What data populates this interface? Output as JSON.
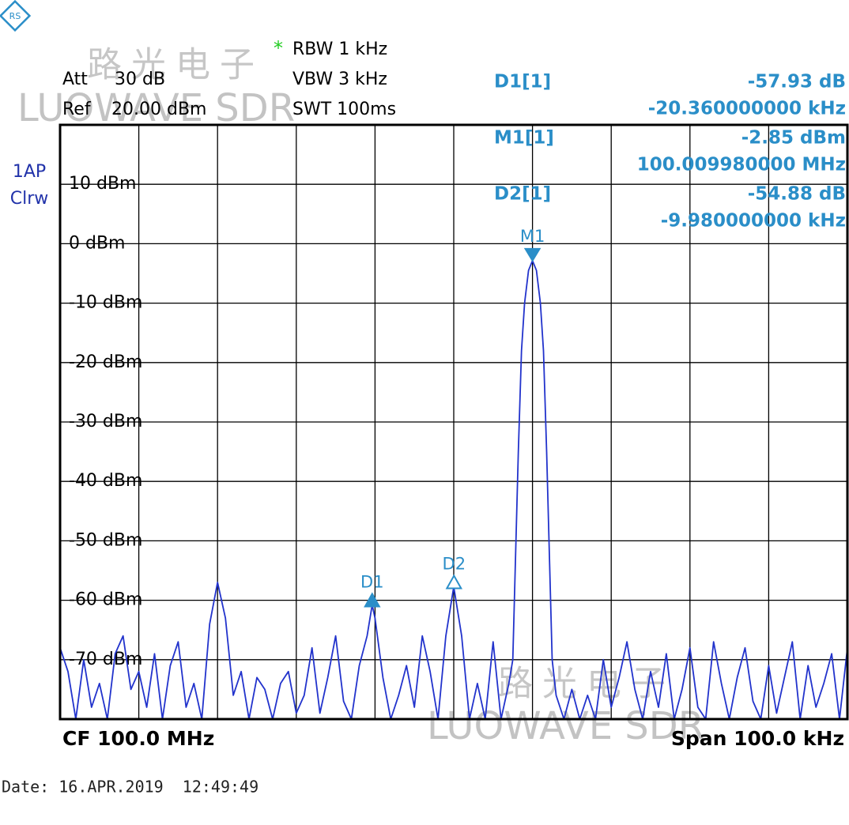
{
  "chart_data": {
    "type": "line",
    "settings": {
      "att_label": "Att",
      "att": "30 dB",
      "ref_label": "Ref",
      "ref": "20.00 dBm",
      "rbw_star": "*",
      "rbw": "RBW 1 kHz",
      "vbw": "VBW 3 kHz",
      "swt": "SWT 100ms",
      "trace_mode": [
        "1AP",
        "Clrw"
      ]
    },
    "readouts": [
      {
        "name": "D1[1]",
        "value": "-57.93 dB",
        "position": "-20.360000000 kHz"
      },
      {
        "name": "M1[1]",
        "value": "-2.85 dBm",
        "position": "100.009980000 MHz"
      },
      {
        "name": "D2[1]",
        "value": "-54.88 dB",
        "position": "-9.980000000 kHz"
      }
    ],
    "footer": {
      "cf": "CF 100.0 MHz",
      "span": "Span 100.0 kHz"
    },
    "date": "Date: 16.APR.2019  12:49:49",
    "watermark": [
      {
        "cn": "路光电子",
        "en": "LUOWAVE SDR"
      },
      {
        "cn": "路光电子",
        "en": "LUOWAVE SDR"
      }
    ],
    "xlim": [
      -50,
      50
    ],
    "ylim": [
      -80,
      20
    ],
    "yticks": [
      {
        "value": 10,
        "label": "10 dBm"
      },
      {
        "value": 0,
        "label": "0 dBm"
      },
      {
        "value": -10,
        "label": "-10 dBm"
      },
      {
        "value": -20,
        "label": "-20 dBm"
      },
      {
        "value": -30,
        "label": "-30 dBm"
      },
      {
        "value": -40,
        "label": "-40 dBm"
      },
      {
        "value": -50,
        "label": "-50 dBm"
      },
      {
        "value": -60,
        "label": "-60 dBm"
      },
      {
        "value": -70,
        "label": "-70 dBm"
      }
    ],
    "grid": true,
    "color": "#2233cc",
    "x": [
      -50,
      -49,
      -48,
      -47,
      -46,
      -45,
      -44,
      -43,
      -42,
      -41,
      -40,
      -39,
      -38,
      -37,
      -36,
      -35,
      -34,
      -33,
      -32,
      -31,
      -30,
      -29,
      -28,
      -27,
      -26,
      -25,
      -24,
      -23,
      -22,
      -21,
      -20,
      -19,
      -18,
      -17,
      -16,
      -15,
      -14,
      -13,
      -12,
      -11,
      -10.36,
      -10,
      -9,
      -8,
      -7,
      -6,
      -5,
      -4,
      -3,
      -2,
      -1,
      0,
      1,
      2,
      3,
      4,
      5,
      6,
      7,
      7.5,
      7.8,
      8.2,
      8.6,
      9,
      9.5,
      10,
      10.5,
      11,
      11.4,
      11.8,
      12.2,
      12.5,
      13,
      14,
      15,
      16,
      17,
      18,
      19,
      20,
      21,
      22,
      23,
      24,
      25,
      26,
      27,
      28,
      29,
      30,
      31,
      32,
      33,
      34,
      35,
      36,
      37,
      38,
      39,
      40,
      41,
      42,
      43,
      44,
      45,
      46,
      47,
      48,
      49,
      50
    ],
    "values": [
      -68,
      -72,
      -80,
      -70,
      -78,
      -74,
      -80,
      -69,
      -66,
      -75,
      -72,
      -78,
      -69,
      -80,
      -71,
      -67,
      -78,
      -74,
      -80,
      -64,
      -57,
      -63,
      -76,
      -72,
      -80,
      -73,
      -75,
      -80,
      -74,
      -72,
      -79,
      -76,
      -68,
      -79,
      -73,
      -66,
      -77,
      -80,
      -71,
      -66,
      -60.78,
      -63,
      -73,
      -80,
      -76,
      -71,
      -78,
      -66,
      -72,
      -80,
      -66,
      -57.73,
      -66,
      -80,
      -74,
      -80,
      -67,
      -80,
      -74,
      -70,
      -55,
      -35,
      -18,
      -10,
      -4.5,
      -2.85,
      -4.5,
      -10,
      -18,
      -35,
      -55,
      -70,
      -76,
      -80,
      -75,
      -80,
      -76,
      -80,
      -70,
      -78,
      -73,
      -67,
      -75,
      -80,
      -72,
      -78,
      -69,
      -80,
      -75,
      -68,
      -78,
      -80,
      -67,
      -74,
      -80,
      -73,
      -68,
      -77,
      -80,
      -71,
      -79,
      -73,
      -67,
      -80,
      -71,
      -78,
      -74,
      -69,
      -80,
      -68
    ],
    "markers": [
      {
        "label": "M1",
        "x": 10,
        "y": -2.85,
        "shape": "down",
        "filled": true
      },
      {
        "label": "D1",
        "x": -10.36,
        "y": -60.78,
        "shape": "up",
        "filled": true
      },
      {
        "label": "D2",
        "x": 0.03,
        "y": -57.73,
        "shape": "up",
        "filled": false
      }
    ]
  }
}
